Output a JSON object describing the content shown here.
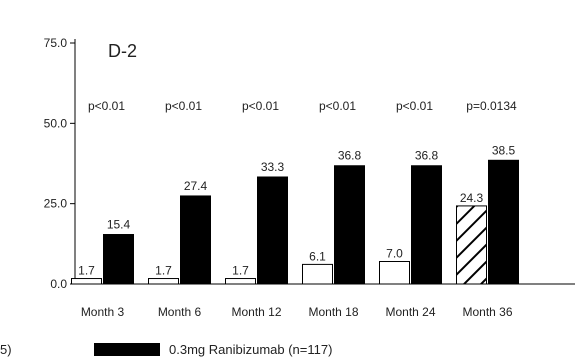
{
  "chart_data": {
    "type": "bar",
    "panel_label": "D-2",
    "categories": [
      "Month 3",
      "Month 6",
      "Month 12",
      "Month 18",
      "Month 24",
      "Month 36"
    ],
    "series": [
      {
        "values": [
          1.7,
          1.7,
          1.7,
          6.1,
          7.0,
          24.3
        ],
        "fill_pattern": [
          "white",
          "white",
          "white",
          "white",
          "white",
          "hatched"
        ],
        "color": "#ffffff"
      },
      {
        "name": "0.3mg Ranibizumab (n=117)",
        "values": [
          15.4,
          27.4,
          33.3,
          36.8,
          36.8,
          38.5
        ],
        "color": "#000000"
      }
    ],
    "value_labels": [
      [
        "1.7",
        "1.7",
        "1.7",
        "6.1",
        "7.0",
        "24.3"
      ],
      [
        "15.4",
        "27.4",
        "33.3",
        "36.8",
        "36.8",
        "38.5"
      ]
    ],
    "p_values": [
      "p<0.01",
      "p<0.01",
      "p<0.01",
      "p<0.01",
      "p<0.01",
      "p=0.0134"
    ],
    "y_ticks": [
      "0.0",
      "25.0",
      "50.0",
      "75.0"
    ],
    "ylim": [
      0,
      75
    ],
    "legend_fragment": "5)",
    "grid": false
  }
}
